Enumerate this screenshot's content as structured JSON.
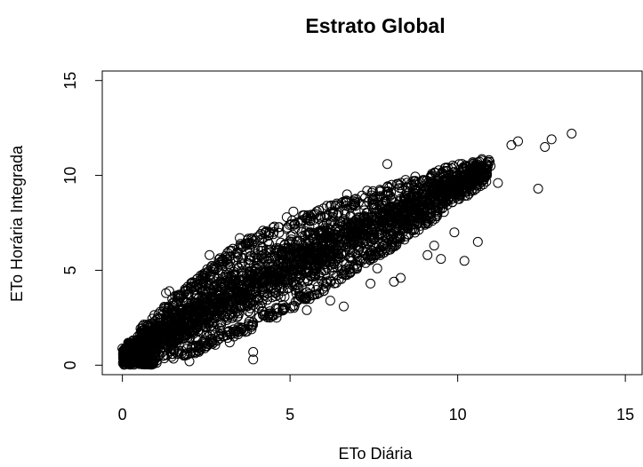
{
  "chart_data": {
    "type": "scatter",
    "title": "Estrato Global",
    "xlabel": "ETo Diária",
    "ylabel": "ETo Horária Integrada",
    "xlim": [
      -0.6,
      15.5
    ],
    "ylim": [
      -0.5,
      15.5
    ],
    "xticks": [
      0,
      5,
      10,
      15
    ],
    "yticks": [
      0,
      5,
      10,
      15
    ],
    "xtick_labels": [
      "0",
      "5",
      "10",
      "15"
    ],
    "ytick_labels": [
      "0",
      "5",
      "10",
      "15"
    ],
    "marker": "open-circle",
    "grid": false,
    "legend": "none",
    "color": "#000000",
    "dense_band": {
      "x": [
        0.0,
        1.0,
        2.0,
        3.0,
        4.0,
        5.0,
        6.0,
        7.0,
        8.0,
        9.0,
        10.0,
        11.0
      ],
      "y_low": [
        0.0,
        0.1,
        0.5,
        1.2,
        2.0,
        2.9,
        3.9,
        5.0,
        6.1,
        7.3,
        8.5,
        9.8
      ],
      "y_high": [
        1.0,
        2.8,
        4.3,
        5.8,
        7.0,
        7.7,
        8.3,
        8.9,
        9.5,
        10.1,
        10.6,
        11.0
      ]
    },
    "outliers": [
      {
        "x": 13.4,
        "y": 12.2
      },
      {
        "x": 12.8,
        "y": 11.9
      },
      {
        "x": 12.6,
        "y": 11.5
      },
      {
        "x": 11.8,
        "y": 11.8
      },
      {
        "x": 11.6,
        "y": 11.6
      },
      {
        "x": 12.4,
        "y": 9.3
      },
      {
        "x": 11.2,
        "y": 9.6
      },
      {
        "x": 10.6,
        "y": 6.5
      },
      {
        "x": 10.2,
        "y": 5.5
      },
      {
        "x": 9.5,
        "y": 5.6
      },
      {
        "x": 9.3,
        "y": 6.3
      },
      {
        "x": 9.1,
        "y": 5.8
      },
      {
        "x": 9.9,
        "y": 7.0
      },
      {
        "x": 7.9,
        "y": 10.6
      },
      {
        "x": 7.3,
        "y": 9.2
      },
      {
        "x": 7.6,
        "y": 5.1
      },
      {
        "x": 7.4,
        "y": 4.3
      },
      {
        "x": 8.3,
        "y": 4.6
      },
      {
        "x": 8.1,
        "y": 4.4
      },
      {
        "x": 6.6,
        "y": 3.1
      },
      {
        "x": 6.2,
        "y": 3.4
      },
      {
        "x": 5.5,
        "y": 2.9
      },
      {
        "x": 4.6,
        "y": 2.5
      },
      {
        "x": 3.9,
        "y": 0.3
      },
      {
        "x": 3.9,
        "y": 0.7
      },
      {
        "x": 3.2,
        "y": 1.2
      },
      {
        "x": 2.9,
        "y": 1.4
      },
      {
        "x": 2.0,
        "y": 0.2
      },
      {
        "x": 1.4,
        "y": 3.9
      },
      {
        "x": 1.3,
        "y": 3.8
      },
      {
        "x": 2.6,
        "y": 5.8
      },
      {
        "x": 3.5,
        "y": 6.7
      },
      {
        "x": 4.9,
        "y": 7.8
      },
      {
        "x": 5.1,
        "y": 8.1
      },
      {
        "x": 6.1,
        "y": 8.4
      },
      {
        "x": 6.7,
        "y": 9.0
      },
      {
        "x": 0.3,
        "y": 1.1
      },
      {
        "x": 0.1,
        "y": 0.8
      },
      {
        "x": 0.6,
        "y": 1.4
      }
    ]
  }
}
